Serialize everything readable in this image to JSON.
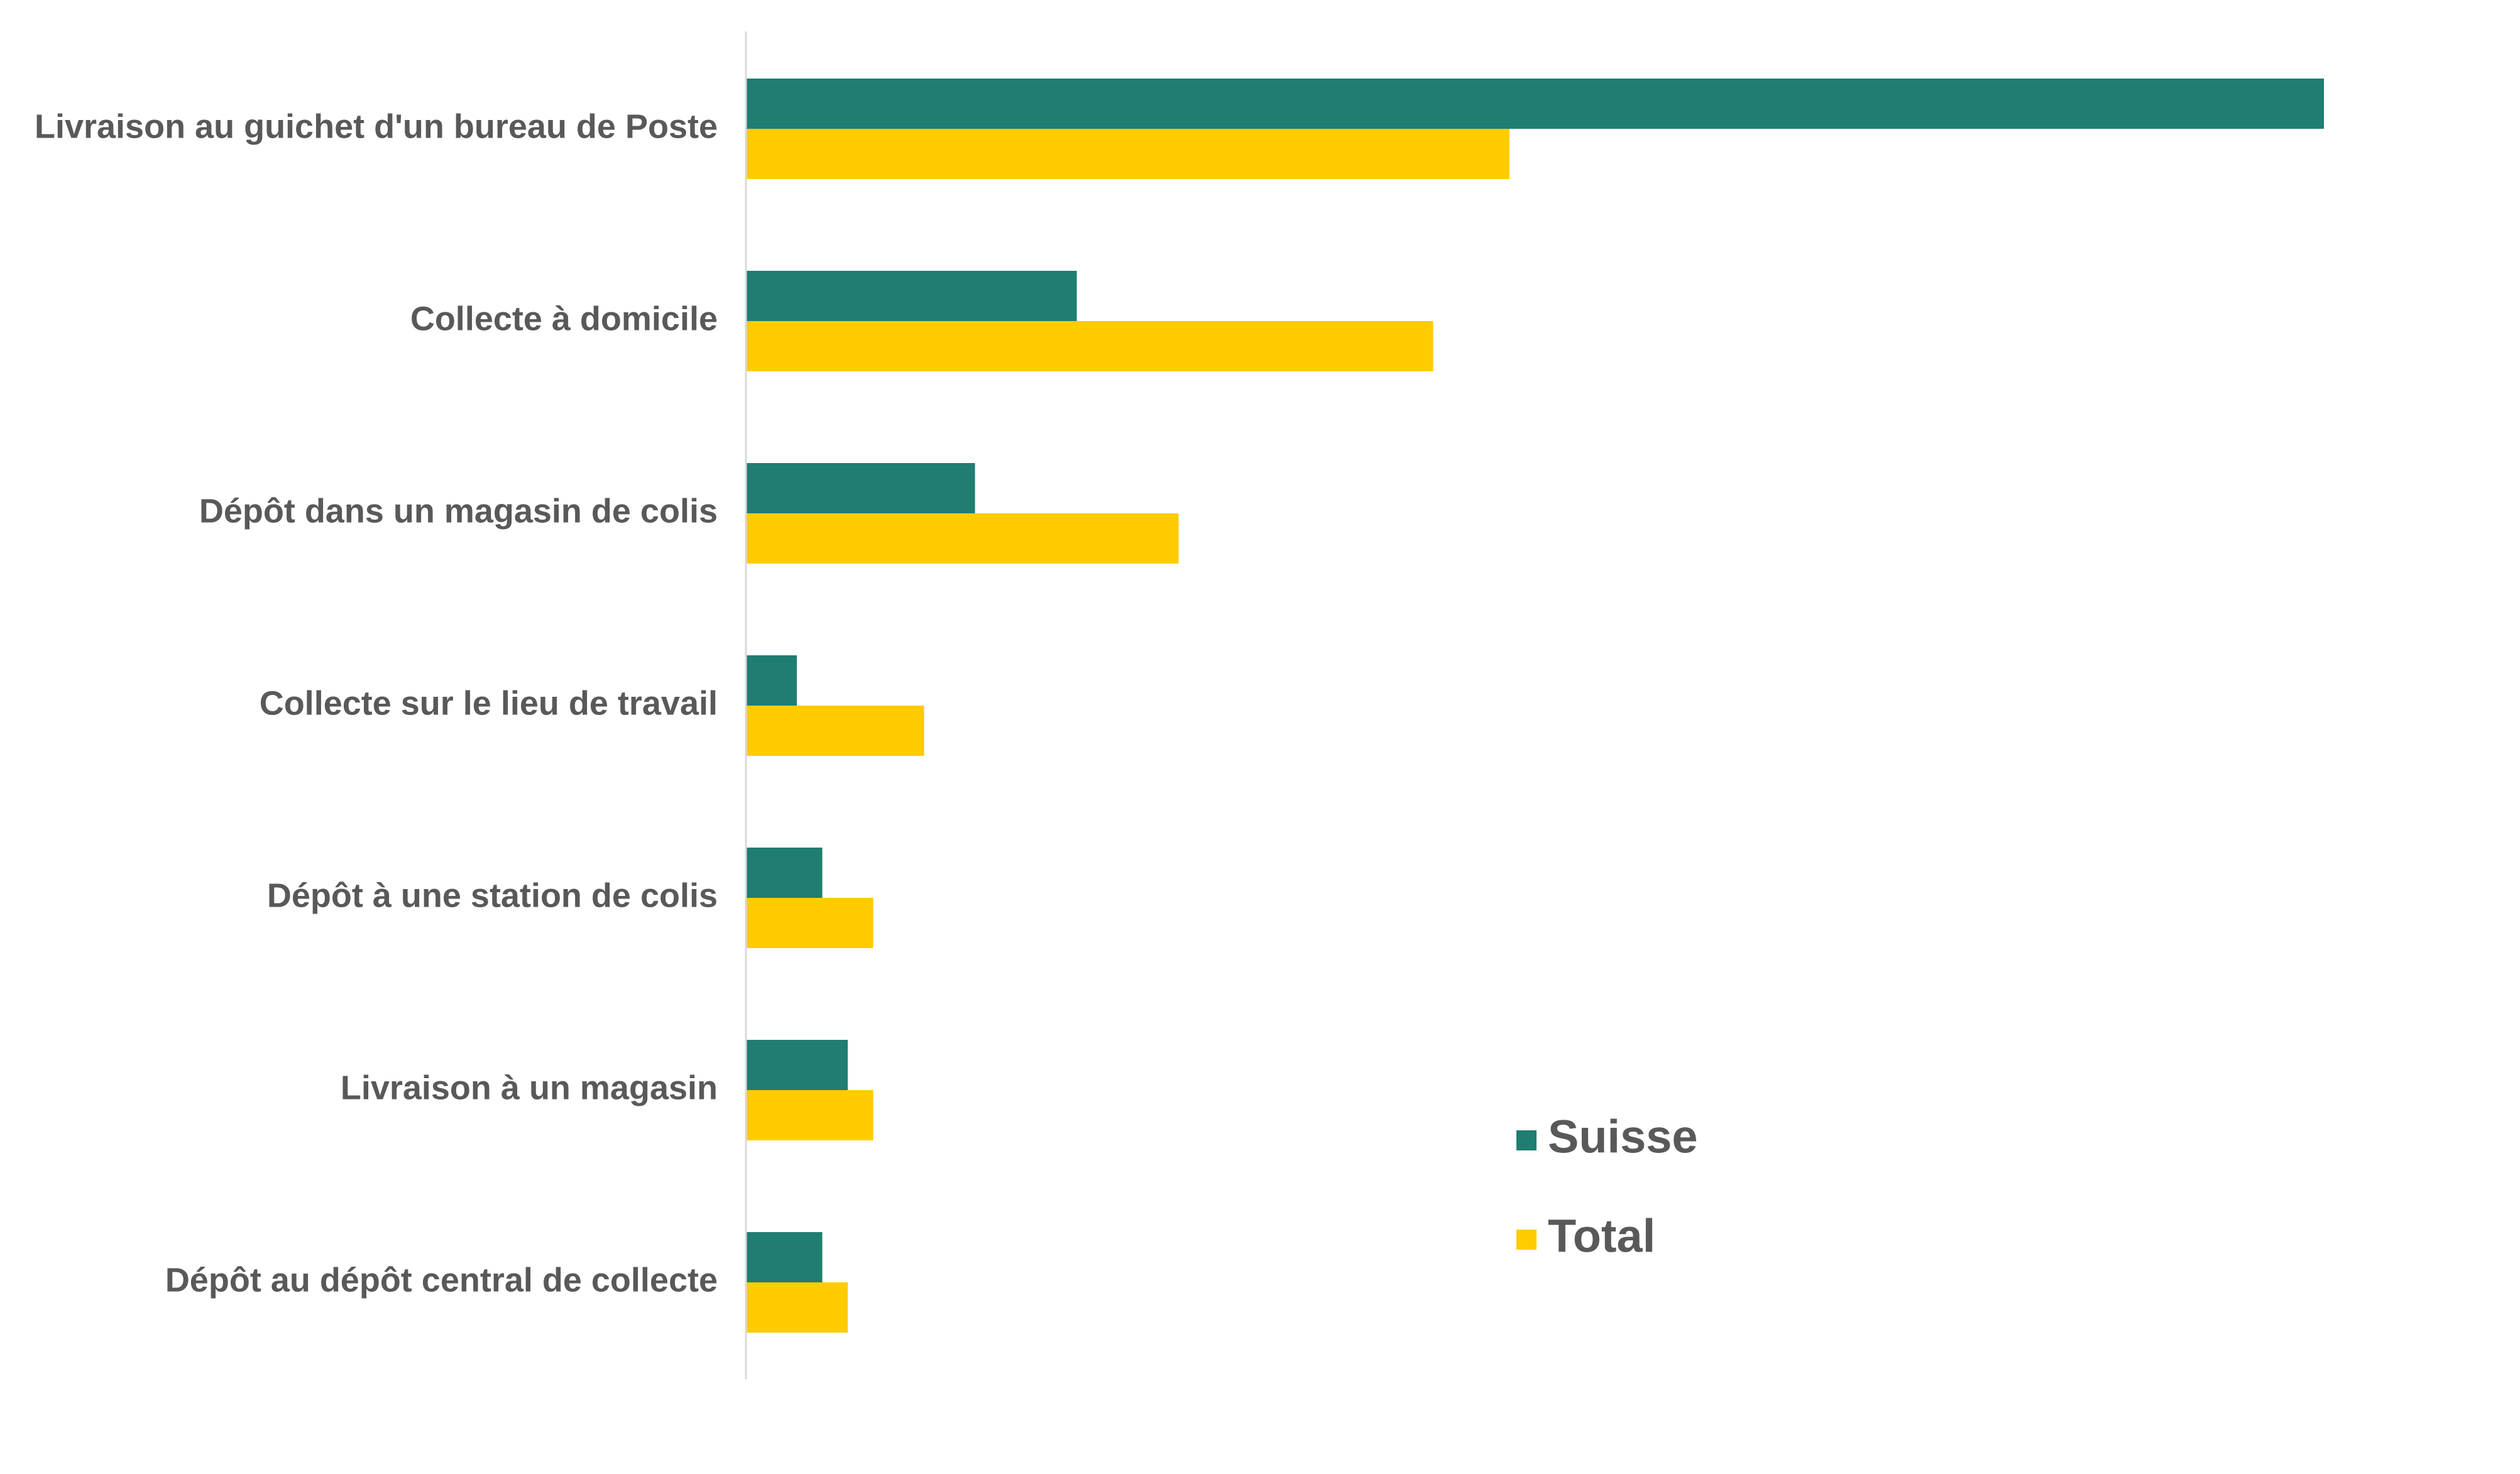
{
  "chart_data": {
    "type": "bar",
    "orientation": "horizontal",
    "categories": [
      "Livraison au guichet d'un bureau de Poste",
      "Collecte à domicile",
      "Dépôt dans un magasin de colis",
      "Collecte sur le lieu de travail",
      "Dépôt à une station de colis",
      "Livraison à un magasin",
      "Dépôt au dépôt central de collecte"
    ],
    "series": [
      {
        "name": "Suisse",
        "color": "#207D72",
        "values": [
          62,
          13,
          9,
          2,
          3,
          4,
          3
        ]
      },
      {
        "name": "Total",
        "color": "#FFCC00",
        "values": [
          30,
          27,
          17,
          7,
          5,
          5,
          4
        ]
      }
    ],
    "xlim": [
      0,
      70
    ],
    "grid": false,
    "legend_position": "bottom-center"
  }
}
